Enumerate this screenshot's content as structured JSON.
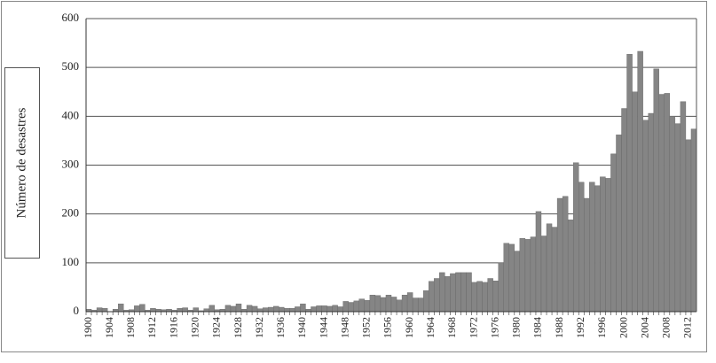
{
  "chart_data": {
    "type": "bar",
    "y_label": "Número de desastres",
    "categories": [
      "1900",
      null,
      null,
      null,
      "1904",
      null,
      null,
      null,
      "1908",
      null,
      null,
      null,
      "1912",
      null,
      null,
      null,
      "1916",
      null,
      null,
      null,
      "1920",
      null,
      null,
      null,
      "1924",
      null,
      null,
      null,
      "1928",
      null,
      null,
      null,
      "1932",
      null,
      null,
      null,
      "1936",
      null,
      null,
      null,
      "1940",
      null,
      null,
      null,
      "1944",
      null,
      null,
      null,
      "1948",
      null,
      null,
      null,
      "1952",
      null,
      null,
      null,
      "1956",
      null,
      null,
      null,
      "1960",
      null,
      null,
      null,
      "1964",
      null,
      null,
      null,
      "1968",
      null,
      null,
      null,
      "1972",
      null,
      null,
      null,
      "1976",
      null,
      null,
      null,
      "1980",
      null,
      null,
      null,
      "1984",
      null,
      null,
      null,
      "1988",
      null,
      null,
      null,
      "1992",
      null,
      null,
      null,
      "1996",
      null,
      null,
      null,
      "2000",
      null,
      null,
      null,
      "2004",
      null,
      null,
      null,
      "2008",
      null,
      null,
      null,
      "2012",
      null
    ],
    "values": [
      5,
      3,
      8,
      7,
      0,
      5,
      16,
      3,
      4,
      12,
      15,
      3,
      7,
      5,
      4,
      5,
      3,
      7,
      8,
      3,
      8,
      2,
      6,
      13,
      4,
      5,
      13,
      11,
      16,
      5,
      13,
      11,
      6,
      8,
      9,
      11,
      9,
      7,
      7,
      10,
      16,
      5,
      10,
      12,
      12,
      11,
      13,
      10,
      21,
      19,
      22,
      26,
      23,
      34,
      33,
      29,
      34,
      30,
      24,
      34,
      39,
      28,
      28,
      43,
      62,
      68,
      80,
      72,
      78,
      80,
      80,
      80,
      60,
      62,
      60,
      68,
      63,
      100,
      140,
      138,
      124,
      150,
      148,
      153,
      205,
      155,
      180,
      173,
      232,
      236,
      188,
      305,
      265,
      232,
      265,
      258,
      276,
      273,
      323,
      362,
      416,
      527,
      450,
      533,
      392,
      406,
      497,
      445,
      447,
      400,
      385,
      430,
      352,
      374
    ],
    "color": "#858585",
    "ylim": [
      0,
      600
    ],
    "yticks": [
      0,
      100,
      200,
      300,
      400,
      500,
      600
    ],
    "grid": true
  }
}
